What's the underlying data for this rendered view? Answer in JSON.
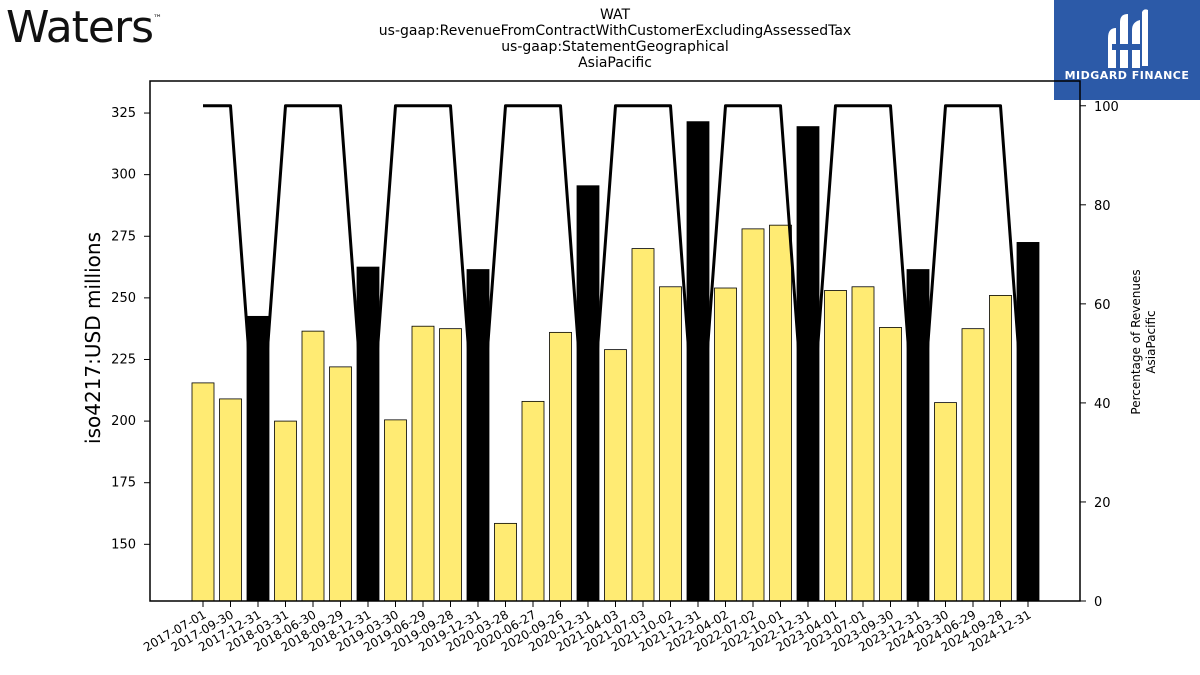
{
  "branding": {
    "left_logo_text": "Waters",
    "left_logo_mark": "™",
    "right_logo_text": "MIDGARD FINANCE"
  },
  "chart_data": {
    "type": "bar",
    "title_lines": [
      "WAT",
      "us-gaap:RevenueFromContractWithCustomerExcludingAssessedTax",
      "us-gaap:StatementGeographical",
      "AsiaPacific"
    ],
    "ylabel": "iso4217:USD  millions",
    "y2label_lines": [
      "Percentage of Revenues",
      "AsiaPacific"
    ],
    "ylim": [
      127,
      338
    ],
    "y_ticks": [
      150,
      175,
      200,
      225,
      250,
      275,
      300,
      325
    ],
    "y2lim": [
      0,
      105
    ],
    "y2_ticks": [
      0,
      20,
      40,
      60,
      80,
      100
    ],
    "categories": [
      "2017-07-01",
      "2017-09-30",
      "2017-12-31",
      "2018-03-31",
      "2018-06-30",
      "2018-09-29",
      "2018-12-31",
      "2019-03-30",
      "2019-06-29",
      "2019-09-28",
      "2019-12-31",
      "2020-03-28",
      "2020-06-27",
      "2020-09-26",
      "2020-12-31",
      "2021-04-03",
      "2021-07-03",
      "2021-10-02",
      "2021-12-31",
      "2022-04-02",
      "2022-07-02",
      "2022-10-01",
      "2022-12-31",
      "2023-04-01",
      "2023-07-01",
      "2023-09-30",
      "2023-12-31",
      "2024-03-30",
      "2024-06-29",
      "2024-09-28",
      "2024-12-31"
    ],
    "series": [
      {
        "kind": "bar",
        "values": [
          215.5,
          209,
          242.5,
          200,
          236.5,
          222,
          262.5,
          200.5,
          238.5,
          237.5,
          261.5,
          158.5,
          208,
          236,
          295.5,
          229,
          270,
          254.5,
          321.5,
          254,
          278,
          279.5,
          319.5,
          253,
          254.5,
          238,
          261.5,
          207.5,
          237.5,
          251,
          272.5
        ],
        "colors": [
          "#ffeb73",
          "#ffeb73",
          "#000000",
          "#ffeb73",
          "#ffeb73",
          "#ffeb73",
          "#000000",
          "#ffeb73",
          "#ffeb73",
          "#ffeb73",
          "#000000",
          "#ffeb73",
          "#ffeb73",
          "#ffeb73",
          "#000000",
          "#ffeb73",
          "#ffeb73",
          "#ffeb73",
          "#000000",
          "#ffeb73",
          "#ffeb73",
          "#ffeb73",
          "#000000",
          "#ffeb73",
          "#ffeb73",
          "#ffeb73",
          "#000000",
          "#ffeb73",
          "#ffeb73",
          "#ffeb73",
          "#000000"
        ]
      },
      {
        "kind": "line",
        "axis": "right",
        "color": "#000000",
        "values": [
          100,
          100,
          25,
          100,
          100,
          100,
          25,
          100,
          100,
          100,
          25,
          100,
          100,
          100,
          25,
          100,
          100,
          100,
          25,
          100,
          100,
          100,
          25,
          100,
          100,
          100,
          25,
          100,
          100,
          100,
          25
        ]
      }
    ],
    "bar_colors": {
      "quarter": "#ffeb73",
      "annual": "#000000"
    },
    "grid": false
  }
}
